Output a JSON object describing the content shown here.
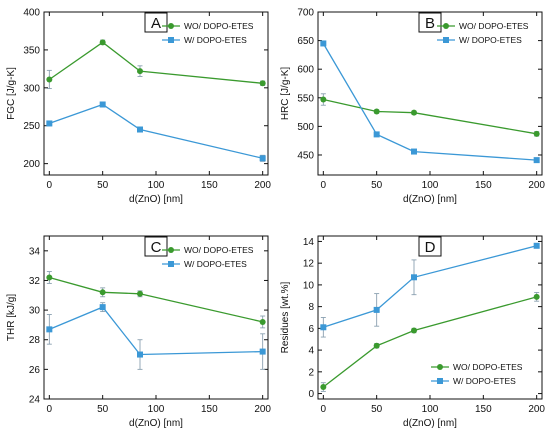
{
  "colors": {
    "wo_series": "#3a9a2e",
    "w_series": "#3b98d6",
    "axis": "#111111",
    "error_bar": "#8aa0b0"
  },
  "chart_data": [
    {
      "type": "line",
      "panel_label": "A",
      "xlabel": "d(ZnO) [nm]",
      "ylabel": "FGC [J/g-K]",
      "xlim": [
        -5,
        205
      ],
      "ylim": [
        185,
        400
      ],
      "xticks": [
        0,
        50,
        100,
        150,
        200
      ],
      "yticks": [
        200,
        250,
        300,
        350,
        400
      ],
      "legend_position": "top-right",
      "x": [
        0,
        50,
        85,
        200
      ],
      "series": [
        {
          "name": "WO/ DOPO-ETES",
          "marker": "circle",
          "values": [
            311,
            360,
            322,
            306
          ],
          "errors": [
            12,
            3,
            7,
            3
          ]
        },
        {
          "name": "W/ DOPO-ETES",
          "marker": "square",
          "values": [
            253,
            278,
            245,
            207
          ],
          "errors": [
            3,
            3,
            3,
            4
          ]
        }
      ]
    },
    {
      "type": "line",
      "panel_label": "B",
      "xlabel": "d(ZnO) [nm]",
      "ylabel": "HRC [J/g-K]",
      "xlim": [
        -5,
        205
      ],
      "ylim": [
        415,
        700
      ],
      "xticks": [
        0,
        50,
        100,
        150,
        200
      ],
      "yticks": [
        450,
        500,
        550,
        600,
        650,
        700
      ],
      "legend_position": "top-right",
      "x": [
        0,
        50,
        85,
        200
      ],
      "series": [
        {
          "name": "WO/ DOPO-ETES",
          "marker": "circle",
          "values": [
            547,
            526,
            524,
            487
          ],
          "errors": [
            10,
            3,
            3,
            4
          ]
        },
        {
          "name": "W/ DOPO-ETES",
          "marker": "square",
          "values": [
            645,
            486,
            456,
            441
          ],
          "errors": [
            3,
            3,
            3,
            3
          ]
        }
      ]
    },
    {
      "type": "line",
      "panel_label": "C",
      "xlabel": "d(ZnO) [nm]",
      "ylabel": "THR [kJ/g]",
      "xlim": [
        -5,
        205
      ],
      "ylim": [
        24,
        35
      ],
      "xticks": [
        0,
        50,
        100,
        150,
        200
      ],
      "yticks": [
        24,
        26,
        28,
        30,
        32,
        34
      ],
      "legend_position": "top-right",
      "x": [
        0,
        50,
        85,
        200
      ],
      "series": [
        {
          "name": "WO/ DOPO-ETES",
          "marker": "circle",
          "values": [
            32.2,
            31.2,
            31.1,
            29.2
          ],
          "errors": [
            0.4,
            0.3,
            0.2,
            0.4
          ]
        },
        {
          "name": "W/ DOPO-ETES",
          "marker": "square",
          "values": [
            28.7,
            30.2,
            27.0,
            27.2
          ],
          "errors": [
            1.0,
            0.3,
            1.0,
            1.2
          ]
        }
      ]
    },
    {
      "type": "line",
      "panel_label": "D",
      "xlabel": "d(ZnO) [nm]",
      "ylabel": "Residues [wt.%]",
      "xlim": [
        -5,
        205
      ],
      "ylim": [
        -0.5,
        14.5
      ],
      "xticks": [
        0,
        50,
        100,
        150,
        200
      ],
      "yticks": [
        0,
        2,
        4,
        6,
        8,
        10,
        12,
        14
      ],
      "legend_position": "bottom-right",
      "x": [
        0,
        50,
        85,
        200
      ],
      "series": [
        {
          "name": "WO/ DOPO-ETES",
          "marker": "circle",
          "values": [
            0.6,
            4.4,
            5.8,
            8.9
          ],
          "errors": [
            0.4,
            0.2,
            0.2,
            0.4
          ]
        },
        {
          "name": "W/ DOPO-ETES",
          "marker": "square",
          "values": [
            6.1,
            7.7,
            10.7,
            13.6
          ],
          "errors": [
            0.9,
            1.5,
            1.6,
            0.2
          ]
        }
      ]
    }
  ]
}
